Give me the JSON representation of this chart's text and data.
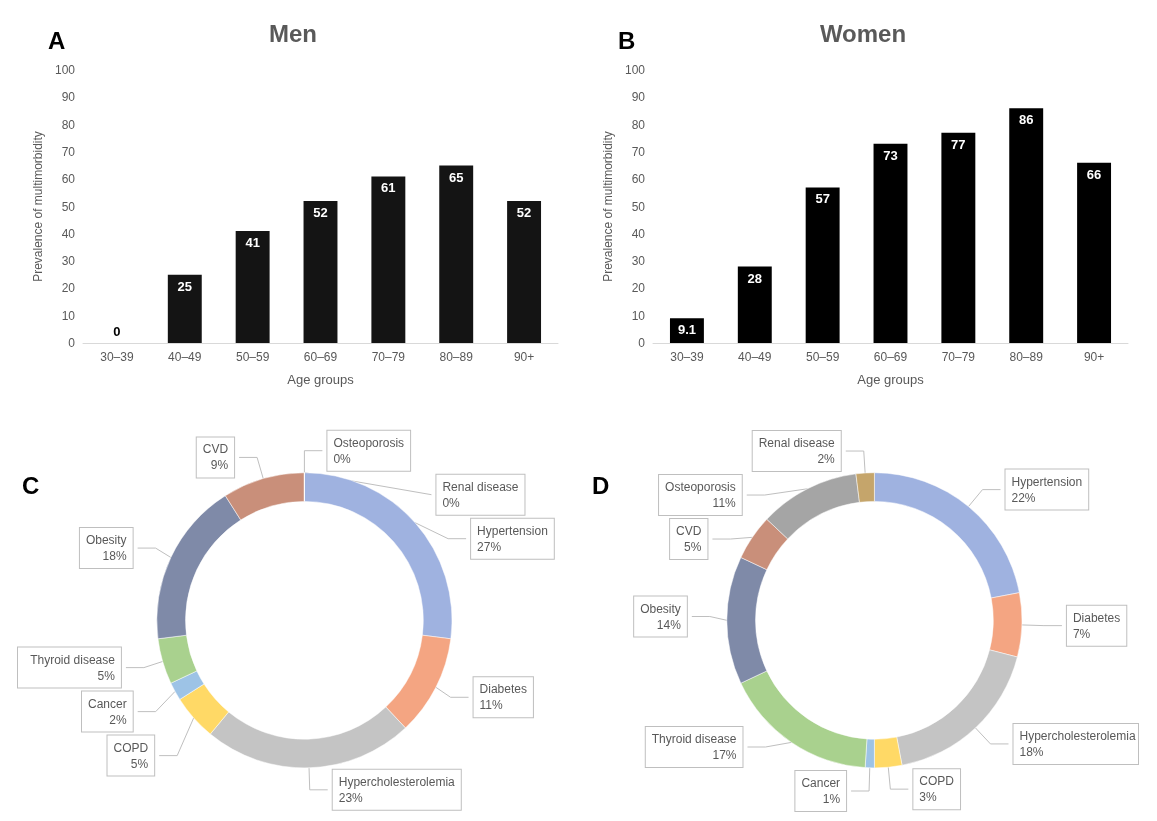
{
  "chart_data": [
    {
      "type": "bar",
      "title": "Men",
      "annotations": [
        "A"
      ],
      "xlabel": "Age groups",
      "ylabel": "Prevalence of multimorbidity",
      "categories": [
        "30–39",
        "40–49",
        "50–59",
        "60–69",
        "70–79",
        "80–89",
        "90+"
      ],
      "values": [
        0,
        25,
        41,
        52,
        61,
        65,
        52
      ],
      "color": "#141414",
      "ylim": [
        0,
        100
      ],
      "yticks": [
        0,
        10,
        20,
        30,
        40,
        50,
        60,
        70,
        80,
        90,
        100
      ],
      "grid": false,
      "data_labels": true,
      "legend": false
    },
    {
      "type": "bar",
      "title": "Women",
      "annotations": [
        "B"
      ],
      "xlabel": "Age groups",
      "ylabel": "Prevalence of multimorbidity",
      "categories": [
        "30–39",
        "40–49",
        "50–59",
        "60–69",
        "70–79",
        "80–89",
        "90+"
      ],
      "values": [
        9.1,
        28,
        57,
        73,
        77,
        86,
        66
      ],
      "color": "#000000",
      "ylim": [
        0,
        100
      ],
      "yticks": [
        0,
        10,
        20,
        30,
        40,
        50,
        60,
        70,
        80,
        90,
        100
      ],
      "grid": false,
      "data_labels": true,
      "legend": false
    },
    {
      "type": "donut",
      "annotations": [
        "C"
      ],
      "categories": [
        "Hypertension",
        "Diabetes",
        "Hypercholesterolemia",
        "COPD",
        "Cancer",
        "Thyroid disease",
        "Obesity",
        "CVD",
        "Osteoporosis",
        "Renal disease"
      ],
      "values": [
        27,
        11,
        23,
        5,
        2,
        5,
        18,
        9,
        0,
        0
      ],
      "value_labels": [
        "27%",
        "11%",
        "23%",
        "5%",
        "2%",
        "5%",
        "18%",
        "9%",
        "0%",
        "0%"
      ],
      "colors": [
        "#9fb2e0",
        "#f4a582",
        "#c4c4c4",
        "#ffd966",
        "#9dc3e6",
        "#a9d18e",
        "#7f8aa8",
        "#c98f7a",
        "#a5a5a5",
        "#c5a56b"
      ],
      "legend": false
    },
    {
      "type": "donut",
      "annotations": [
        "D"
      ],
      "categories": [
        "Hypertension",
        "Diabetes",
        "Hypercholesterolemia",
        "COPD",
        "Cancer",
        "Thyroid disease",
        "Obesity",
        "CVD",
        "Osteoporosis",
        "Renal disease"
      ],
      "values": [
        22,
        7,
        18,
        3,
        1,
        17,
        14,
        5,
        11,
        2
      ],
      "value_labels": [
        "22%",
        "7%",
        "18%",
        "3%",
        "1%",
        "17%",
        "14%",
        "5%",
        "11%",
        "2%"
      ],
      "colors": [
        "#9fb2e0",
        "#f4a582",
        "#c4c4c4",
        "#ffd966",
        "#9dc3e6",
        "#a9d18e",
        "#7f8aa8",
        "#c98f7a",
        "#a5a5a5",
        "#c5a56b"
      ],
      "legend": false
    }
  ]
}
